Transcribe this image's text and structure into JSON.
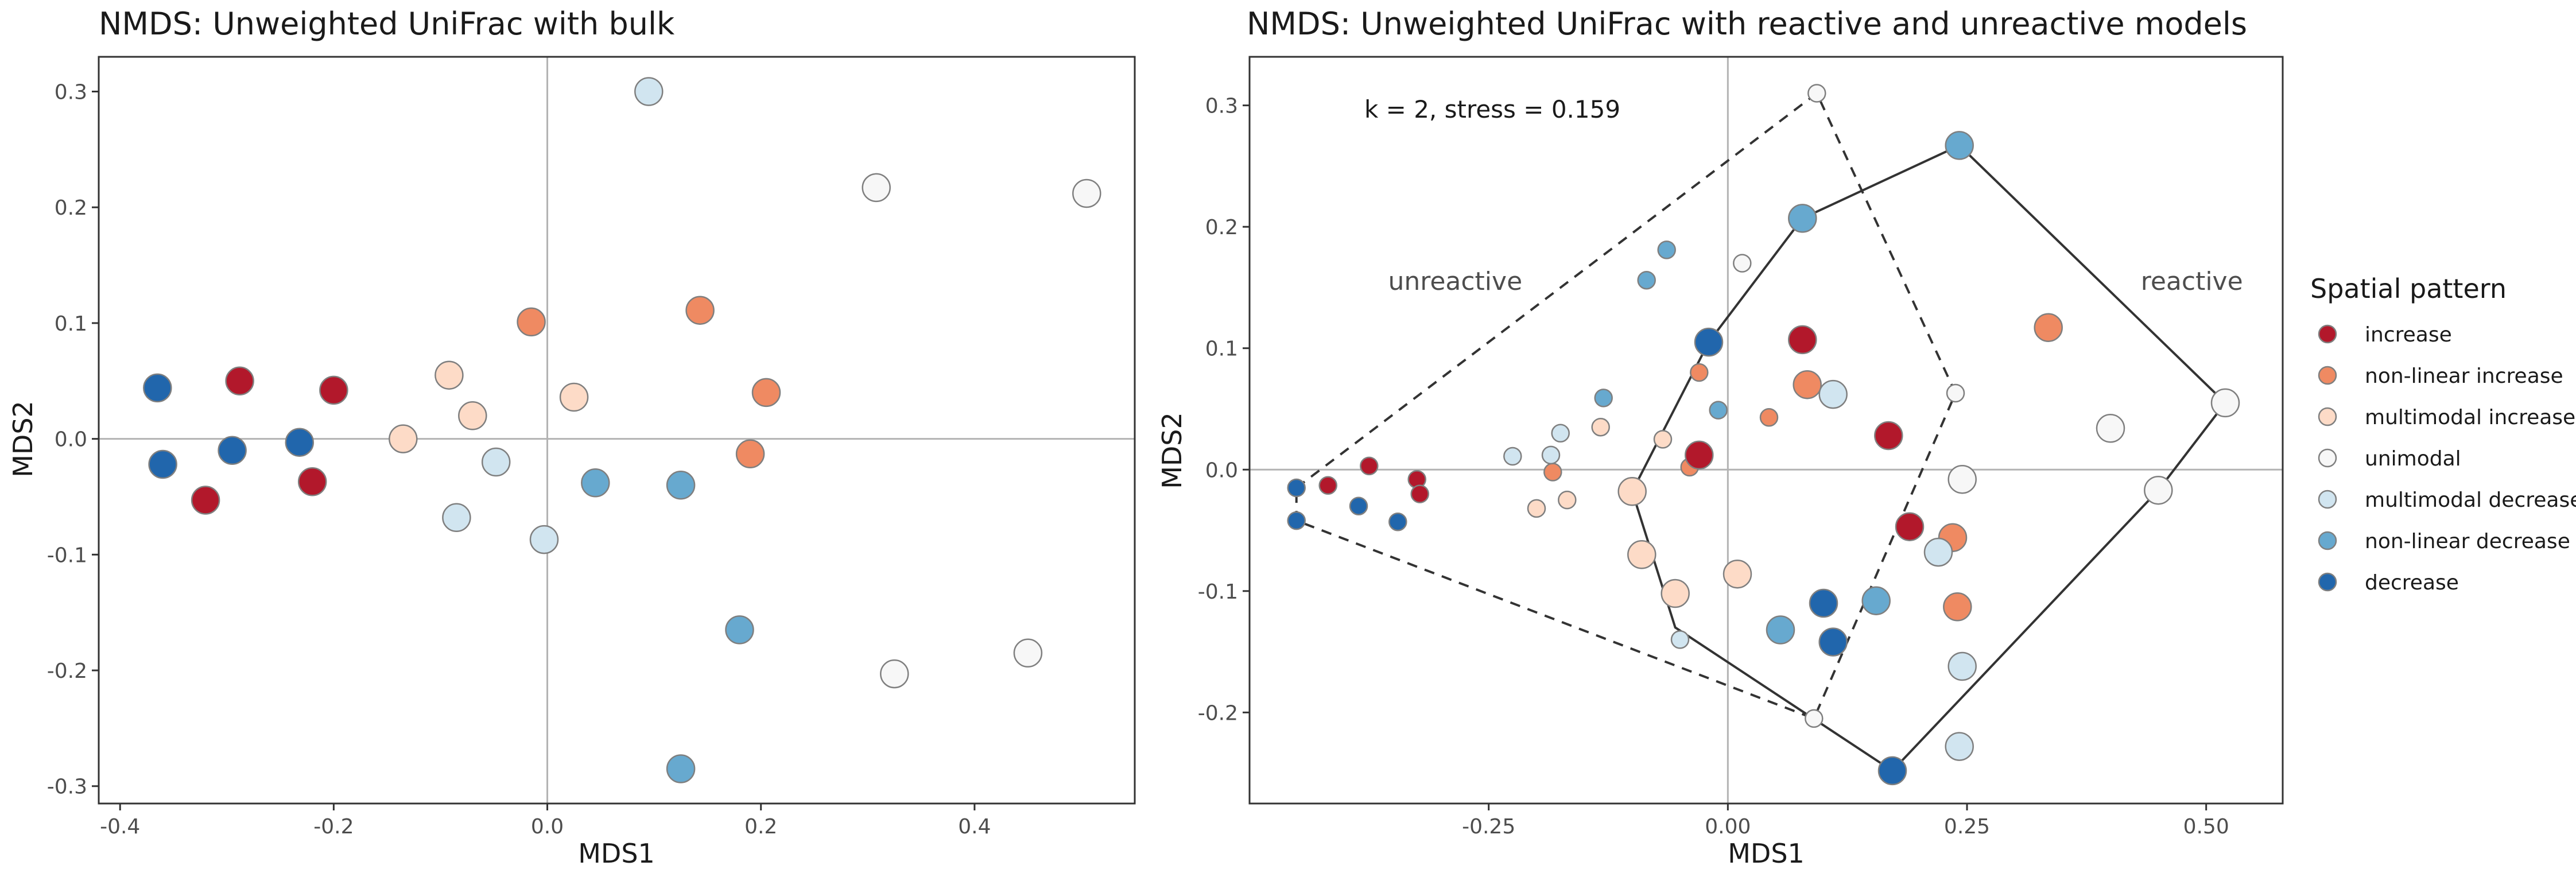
{
  "legend": {
    "title": "Spatial pattern",
    "items": [
      {
        "key": "increase",
        "label": "increase",
        "color": "#B2182B"
      },
      {
        "key": "nonlinear_increase",
        "label": "non-linear increase",
        "color": "#EF8A62"
      },
      {
        "key": "multimodal_increase",
        "label": "multimodal increase",
        "color": "#FDDBC7"
      },
      {
        "key": "unimodal",
        "label": "unimodal",
        "color": "#F7F7F7"
      },
      {
        "key": "multimodal_decrease",
        "label": "multimodal decrease",
        "color": "#D1E5F0"
      },
      {
        "key": "nonlinear_decrease",
        "label": "non-linear decrease",
        "color": "#67A9CF"
      },
      {
        "key": "decrease",
        "label": "decrease",
        "color": "#2166AC"
      }
    ]
  },
  "chart_data": [
    {
      "type": "scatter",
      "title": "NMDS: Unweighted UniFrac with bulk",
      "xlabel": "MDS1",
      "ylabel": "MDS2",
      "xlim": [
        -0.42,
        0.55
      ],
      "ylim": [
        -0.315,
        0.33
      ],
      "xticks": [
        -0.4,
        -0.2,
        0.0,
        0.2,
        0.4
      ],
      "xtick_labels": [
        "-0.4",
        "-0.2",
        "0.0",
        "0.2",
        "0.4"
      ],
      "yticks": [
        -0.3,
        -0.2,
        -0.1,
        0.0,
        0.1,
        0.2,
        0.3
      ],
      "ytick_labels": [
        "-0.3",
        "-0.2",
        "-0.1",
        "0.0",
        "0.1",
        "0.2",
        "0.3"
      ],
      "grid": false,
      "zero_lines": true,
      "points": [
        {
          "x": -0.365,
          "y": 0.044,
          "group": "decrease"
        },
        {
          "x": -0.36,
          "y": -0.022,
          "group": "decrease"
        },
        {
          "x": -0.295,
          "y": -0.01,
          "group": "decrease"
        },
        {
          "x": -0.232,
          "y": -0.003,
          "group": "decrease"
        },
        {
          "x": -0.32,
          "y": -0.053,
          "group": "increase"
        },
        {
          "x": -0.288,
          "y": 0.05,
          "group": "increase"
        },
        {
          "x": -0.2,
          "y": 0.042,
          "group": "increase"
        },
        {
          "x": -0.22,
          "y": -0.037,
          "group": "increase"
        },
        {
          "x": -0.135,
          "y": 0.0,
          "group": "multimodal_increase"
        },
        {
          "x": -0.092,
          "y": 0.055,
          "group": "multimodal_increase"
        },
        {
          "x": -0.07,
          "y": 0.02,
          "group": "multimodal_increase"
        },
        {
          "x": 0.025,
          "y": 0.036,
          "group": "multimodal_increase"
        },
        {
          "x": -0.015,
          "y": 0.101,
          "group": "nonlinear_increase"
        },
        {
          "x": 0.143,
          "y": 0.111,
          "group": "nonlinear_increase"
        },
        {
          "x": 0.205,
          "y": 0.04,
          "group": "nonlinear_increase"
        },
        {
          "x": 0.19,
          "y": -0.013,
          "group": "nonlinear_increase"
        },
        {
          "x": -0.085,
          "y": -0.068,
          "group": "multimodal_decrease"
        },
        {
          "x": -0.048,
          "y": -0.02,
          "group": "multimodal_decrease"
        },
        {
          "x": -0.003,
          "y": -0.087,
          "group": "multimodal_decrease"
        },
        {
          "x": 0.095,
          "y": 0.3,
          "group": "multimodal_decrease"
        },
        {
          "x": 0.045,
          "y": -0.038,
          "group": "nonlinear_decrease"
        },
        {
          "x": 0.125,
          "y": -0.04,
          "group": "nonlinear_decrease"
        },
        {
          "x": 0.18,
          "y": -0.165,
          "group": "nonlinear_decrease"
        },
        {
          "x": 0.125,
          "y": -0.285,
          "group": "nonlinear_decrease"
        },
        {
          "x": 0.308,
          "y": 0.217,
          "group": "unimodal"
        },
        {
          "x": 0.505,
          "y": 0.212,
          "group": "unimodal"
        },
        {
          "x": 0.325,
          "y": -0.203,
          "group": "unimodal"
        },
        {
          "x": 0.45,
          "y": -0.185,
          "group": "unimodal"
        }
      ]
    },
    {
      "type": "scatter",
      "title": "NMDS: Unweighted UniFrac with reactive and unreactive models",
      "xlabel": "MDS1",
      "ylabel": "MDS2",
      "xlim": [
        -0.5,
        0.58
      ],
      "ylim": [
        -0.275,
        0.34
      ],
      "xticks": [
        -0.25,
        0.0,
        0.25,
        0.5
      ],
      "xtick_labels": [
        "-0.25",
        "0.00",
        "0.25",
        "0.50"
      ],
      "yticks": [
        -0.2,
        -0.1,
        0.0,
        0.1,
        0.2,
        0.3
      ],
      "ytick_labels": [
        "-0.2",
        "-0.1",
        "0.0",
        "0.1",
        "0.2",
        "0.3"
      ],
      "grid": false,
      "zero_lines": true,
      "annotations": [
        {
          "text": "k = 2, stress =  0.159",
          "x": -0.38,
          "y": 0.29
        },
        {
          "text": "unreactive",
          "x": -0.285,
          "y": 0.148
        },
        {
          "text": "reactive",
          "x": 0.485,
          "y": 0.148
        }
      ],
      "hulls": [
        {
          "name": "unreactive",
          "style": "dashed",
          "points": [
            [
              -0.451,
              -0.015
            ],
            [
              0.093,
              0.31
            ],
            [
              0.238,
              0.063
            ],
            [
              0.09,
              -0.205
            ],
            [
              -0.451,
              -0.042
            ]
          ]
        },
        {
          "name": "reactive",
          "style": "solid",
          "points": [
            [
              0.242,
              0.267
            ],
            [
              0.52,
              0.055
            ],
            [
              0.45,
              -0.017
            ],
            [
              0.172,
              -0.248
            ],
            [
              -0.055,
              -0.13
            ],
            [
              -0.1,
              -0.018
            ],
            [
              -0.02,
              0.105
            ],
            [
              0.078,
              0.207
            ]
          ]
        }
      ],
      "points": [
        {
          "x": -0.451,
          "y": -0.015,
          "group": "decrease",
          "size": "small"
        },
        {
          "x": -0.451,
          "y": -0.042,
          "group": "decrease",
          "size": "small"
        },
        {
          "x": -0.386,
          "y": -0.03,
          "group": "decrease",
          "size": "small"
        },
        {
          "x": -0.345,
          "y": -0.043,
          "group": "decrease",
          "size": "small"
        },
        {
          "x": -0.418,
          "y": -0.013,
          "group": "increase",
          "size": "small"
        },
        {
          "x": -0.375,
          "y": 0.003,
          "group": "increase",
          "size": "small"
        },
        {
          "x": -0.325,
          "y": -0.008,
          "group": "increase",
          "size": "small"
        },
        {
          "x": -0.322,
          "y": -0.02,
          "group": "increase",
          "size": "small"
        },
        {
          "x": -0.183,
          "y": -0.002,
          "group": "nonlinear_increase",
          "size": "small"
        },
        {
          "x": -0.03,
          "y": 0.08,
          "group": "nonlinear_increase",
          "size": "small"
        },
        {
          "x": -0.04,
          "y": 0.002,
          "group": "nonlinear_increase",
          "size": "small"
        },
        {
          "x": 0.043,
          "y": 0.043,
          "group": "nonlinear_increase",
          "size": "small"
        },
        {
          "x": -0.2,
          "y": -0.032,
          "group": "multimodal_increase",
          "size": "small"
        },
        {
          "x": -0.168,
          "y": -0.025,
          "group": "multimodal_increase",
          "size": "small"
        },
        {
          "x": -0.133,
          "y": 0.035,
          "group": "multimodal_increase",
          "size": "small"
        },
        {
          "x": -0.068,
          "y": 0.025,
          "group": "multimodal_increase",
          "size": "small"
        },
        {
          "x": -0.225,
          "y": 0.011,
          "group": "multimodal_decrease",
          "size": "small"
        },
        {
          "x": -0.185,
          "y": 0.012,
          "group": "multimodal_decrease",
          "size": "small"
        },
        {
          "x": -0.175,
          "y": 0.03,
          "group": "multimodal_decrease",
          "size": "small"
        },
        {
          "x": -0.05,
          "y": -0.14,
          "group": "multimodal_decrease",
          "size": "small"
        },
        {
          "x": -0.13,
          "y": 0.059,
          "group": "nonlinear_decrease",
          "size": "small"
        },
        {
          "x": -0.085,
          "y": 0.156,
          "group": "nonlinear_decrease",
          "size": "small"
        },
        {
          "x": -0.064,
          "y": 0.181,
          "group": "nonlinear_decrease",
          "size": "small"
        },
        {
          "x": -0.01,
          "y": 0.049,
          "group": "nonlinear_decrease",
          "size": "small"
        },
        {
          "x": 0.093,
          "y": 0.31,
          "group": "unimodal",
          "size": "small"
        },
        {
          "x": 0.015,
          "y": 0.17,
          "group": "unimodal",
          "size": "small"
        },
        {
          "x": 0.238,
          "y": 0.063,
          "group": "unimodal",
          "size": "small"
        },
        {
          "x": 0.09,
          "y": -0.205,
          "group": "unimodal",
          "size": "small"
        },
        {
          "x": -0.03,
          "y": 0.012,
          "group": "increase",
          "size": "large"
        },
        {
          "x": 0.078,
          "y": 0.107,
          "group": "increase",
          "size": "large"
        },
        {
          "x": 0.168,
          "y": 0.028,
          "group": "increase",
          "size": "large"
        },
        {
          "x": 0.19,
          "y": -0.047,
          "group": "increase",
          "size": "large"
        },
        {
          "x": 0.083,
          "y": 0.07,
          "group": "nonlinear_increase",
          "size": "large"
        },
        {
          "x": 0.235,
          "y": -0.056,
          "group": "nonlinear_increase",
          "size": "large"
        },
        {
          "x": 0.24,
          "y": -0.113,
          "group": "nonlinear_increase",
          "size": "large"
        },
        {
          "x": 0.335,
          "y": 0.117,
          "group": "nonlinear_increase",
          "size": "large"
        },
        {
          "x": -0.1,
          "y": -0.018,
          "group": "multimodal_increase",
          "size": "large"
        },
        {
          "x": -0.09,
          "y": -0.07,
          "group": "multimodal_increase",
          "size": "large"
        },
        {
          "x": -0.055,
          "y": -0.102,
          "group": "multimodal_increase",
          "size": "large"
        },
        {
          "x": 0.01,
          "y": -0.086,
          "group": "multimodal_increase",
          "size": "large"
        },
        {
          "x": 0.11,
          "y": 0.062,
          "group": "multimodal_decrease",
          "size": "large"
        },
        {
          "x": 0.22,
          "y": -0.068,
          "group": "multimodal_decrease",
          "size": "large"
        },
        {
          "x": 0.245,
          "y": -0.162,
          "group": "multimodal_decrease",
          "size": "large"
        },
        {
          "x": 0.242,
          "y": -0.228,
          "group": "multimodal_decrease",
          "size": "large"
        },
        {
          "x": 0.078,
          "y": 0.207,
          "group": "nonlinear_decrease",
          "size": "large"
        },
        {
          "x": 0.242,
          "y": 0.267,
          "group": "nonlinear_decrease",
          "size": "large"
        },
        {
          "x": 0.055,
          "y": -0.132,
          "group": "nonlinear_decrease",
          "size": "large"
        },
        {
          "x": 0.155,
          "y": -0.108,
          "group": "nonlinear_decrease",
          "size": "large"
        },
        {
          "x": -0.02,
          "y": 0.105,
          "group": "decrease",
          "size": "large"
        },
        {
          "x": 0.1,
          "y": -0.11,
          "group": "decrease",
          "size": "large"
        },
        {
          "x": 0.11,
          "y": -0.142,
          "group": "decrease",
          "size": "large"
        },
        {
          "x": 0.172,
          "y": -0.248,
          "group": "decrease",
          "size": "large"
        },
        {
          "x": 0.245,
          "y": -0.008,
          "group": "unimodal",
          "size": "large"
        },
        {
          "x": 0.4,
          "y": 0.034,
          "group": "unimodal",
          "size": "large"
        },
        {
          "x": 0.45,
          "y": -0.017,
          "group": "unimodal",
          "size": "large"
        },
        {
          "x": 0.52,
          "y": 0.055,
          "group": "unimodal",
          "size": "large"
        }
      ]
    }
  ]
}
